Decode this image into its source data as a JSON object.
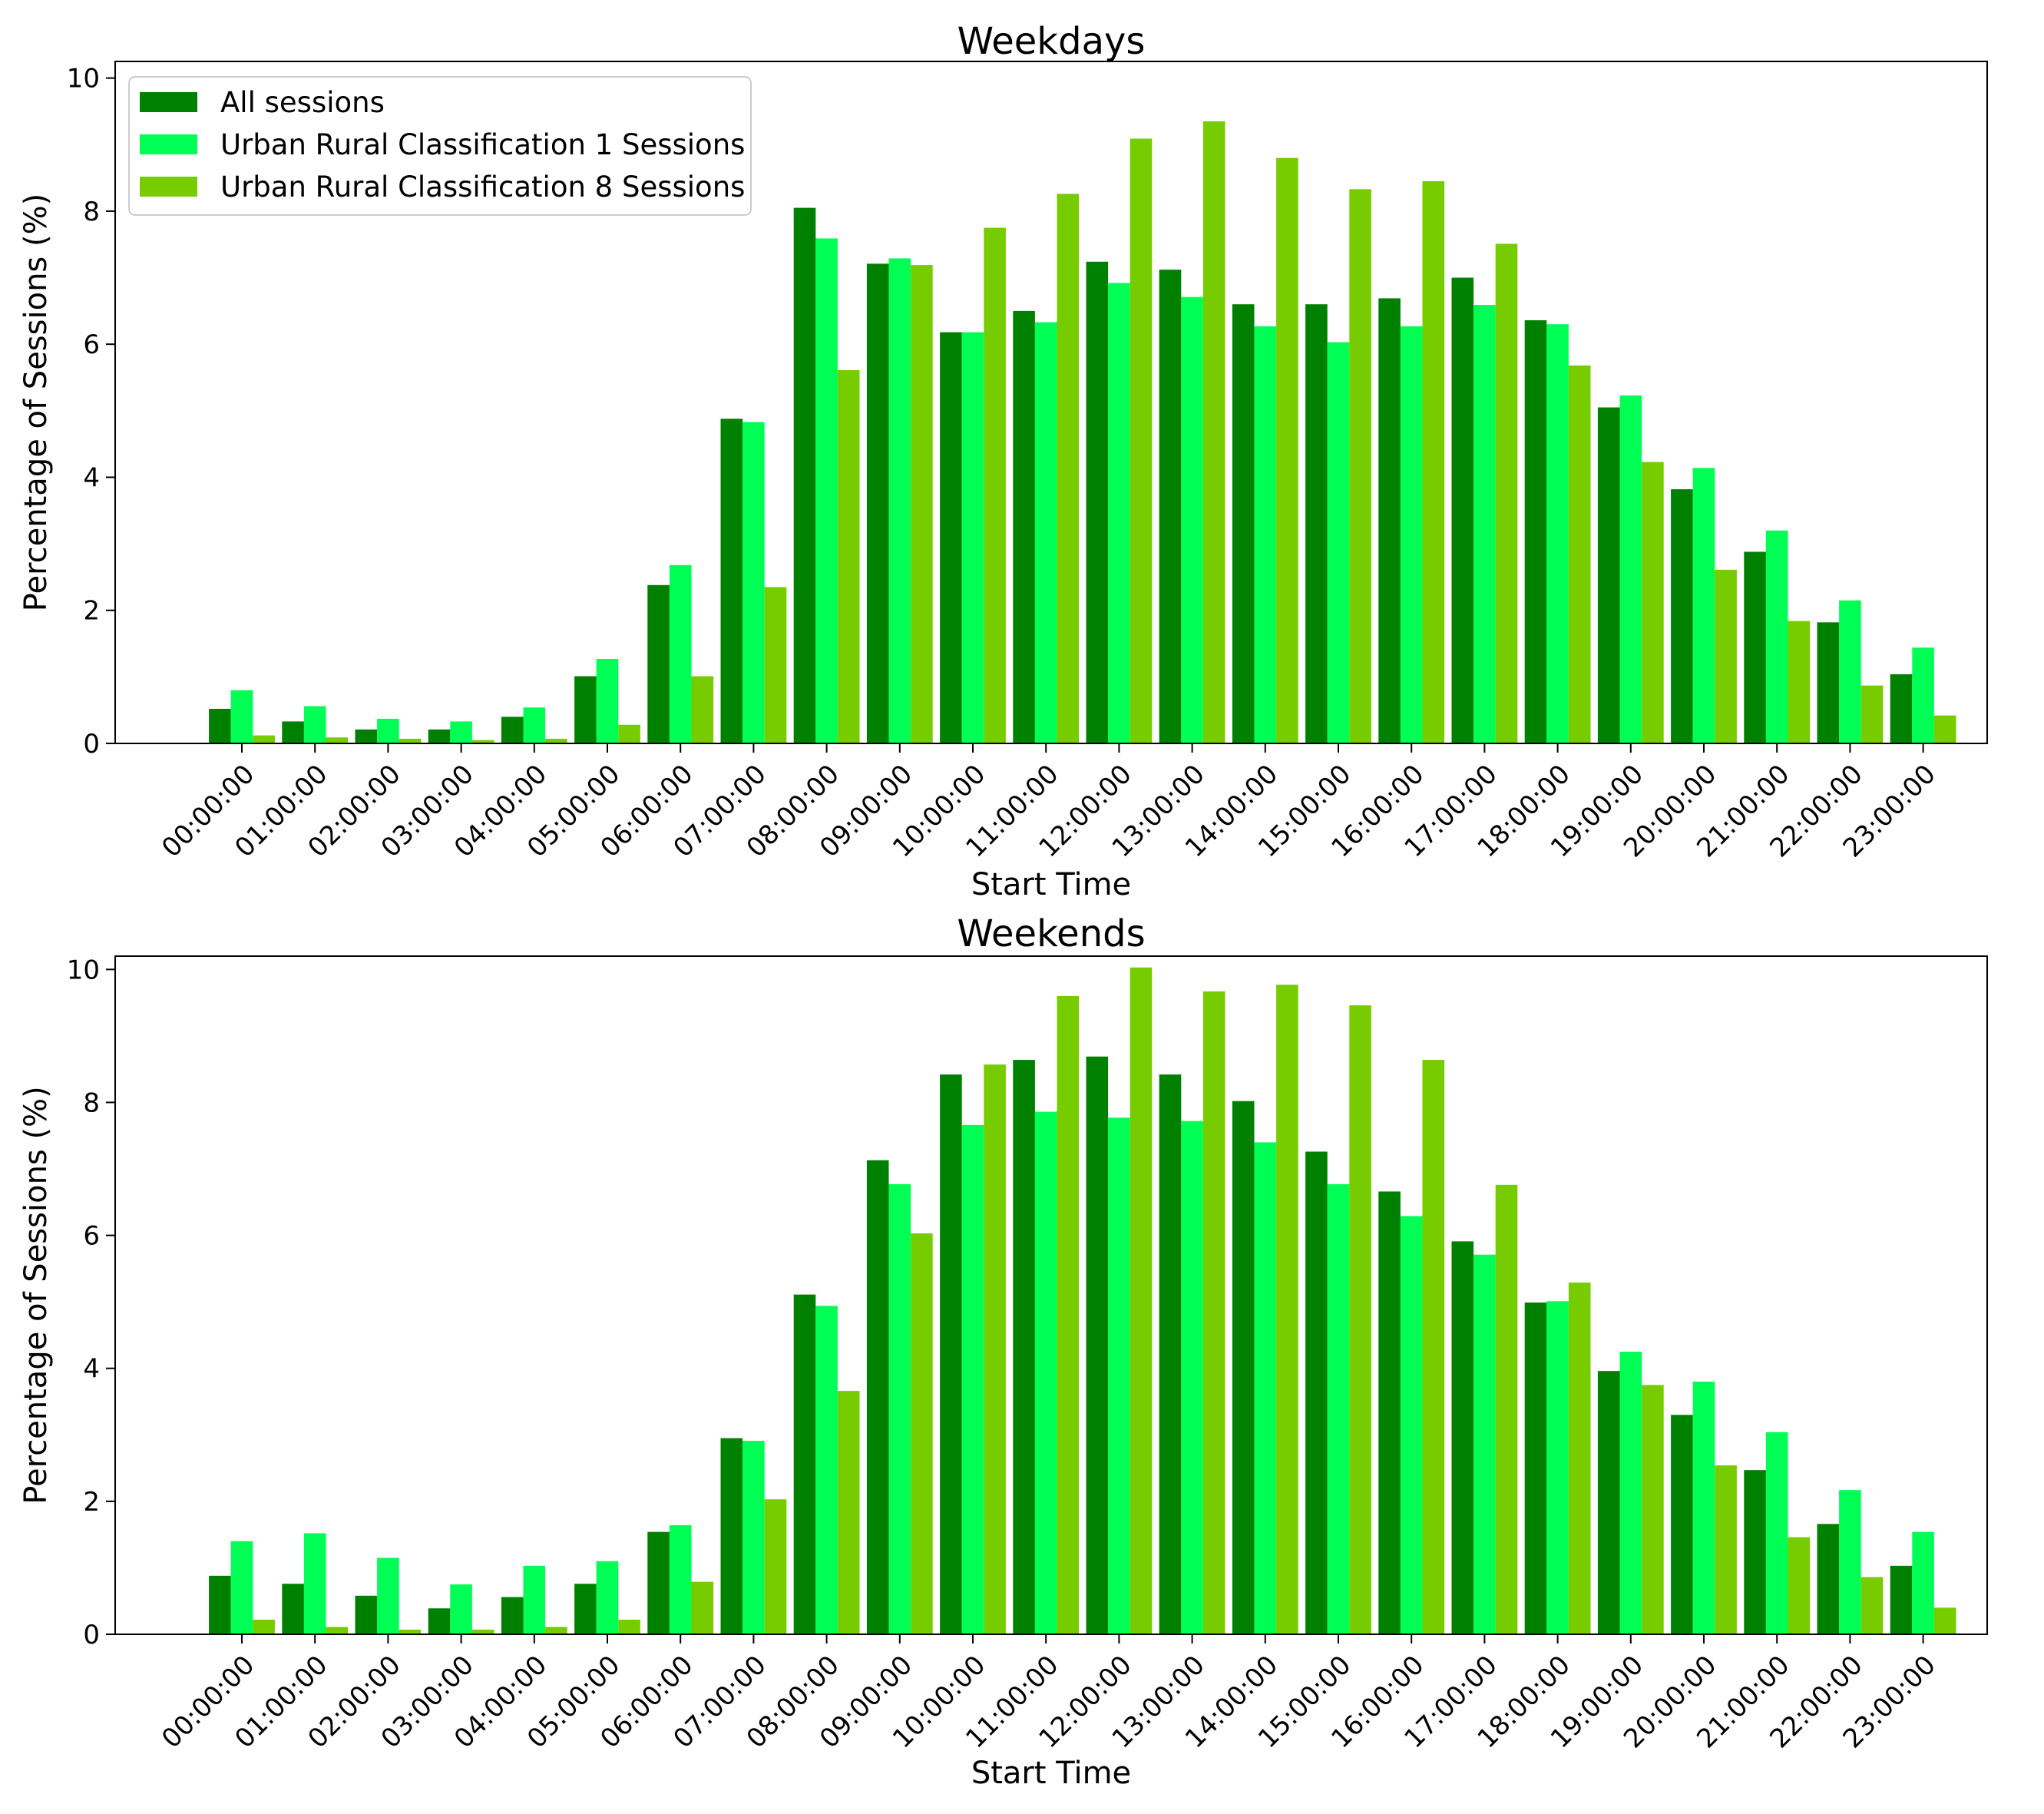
{
  "chart_data": [
    {
      "type": "bar",
      "title": "Weekdays",
      "xlabel": "Start Time",
      "ylabel": "Percentage of Sessions (%)",
      "ylim": [
        0,
        10.25
      ],
      "yticks": [
        0,
        2,
        4,
        6,
        8,
        10
      ],
      "grid": false,
      "legend": "top-left",
      "categories": [
        "00:00:00",
        "01:00:00",
        "02:00:00",
        "03:00:00",
        "04:00:00",
        "05:00:00",
        "06:00:00",
        "07:00:00",
        "08:00:00",
        "09:00:00",
        "10:00:00",
        "11:00:00",
        "12:00:00",
        "13:00:00",
        "14:00:00",
        "15:00:00",
        "16:00:00",
        "17:00:00",
        "18:00:00",
        "19:00:00",
        "20:00:00",
        "21:00:00",
        "22:00:00",
        "23:00:00"
      ],
      "series": [
        {
          "name": "All sessions",
          "color": "#008000",
          "values": [
            0.52,
            0.33,
            0.21,
            0.21,
            0.4,
            1.01,
            2.38,
            4.88,
            8.05,
            7.21,
            6.18,
            6.5,
            7.24,
            7.12,
            6.6,
            6.6,
            6.69,
            7.0,
            6.36,
            5.05,
            3.82,
            2.88,
            1.82,
            1.04
          ]
        },
        {
          "name": "Urban Rural Classification 1 Sessions",
          "color": "#00FF55",
          "values": [
            0.8,
            0.56,
            0.37,
            0.33,
            0.54,
            1.27,
            2.68,
            4.83,
            7.59,
            7.29,
            6.18,
            6.33,
            6.92,
            6.71,
            6.27,
            6.03,
            6.27,
            6.59,
            6.3,
            5.23,
            4.14,
            3.2,
            2.15,
            1.44
          ]
        },
        {
          "name": "Urban Rural Classification 8 Sessions",
          "color": "#77CC00",
          "values": [
            0.12,
            0.09,
            0.07,
            0.05,
            0.07,
            0.28,
            1.01,
            2.35,
            5.61,
            7.19,
            7.75,
            8.26,
            9.09,
            9.35,
            8.8,
            8.33,
            8.45,
            7.51,
            5.68,
            4.23,
            2.61,
            1.84,
            0.87,
            0.42
          ]
        }
      ]
    },
    {
      "type": "bar",
      "title": "Weekends",
      "xlabel": "Start Time",
      "ylabel": "Percentage of Sessions (%)",
      "ylim": [
        0,
        10.2
      ],
      "yticks": [
        0,
        2,
        4,
        6,
        8,
        10
      ],
      "grid": false,
      "legend": "none",
      "categories": [
        "00:00:00",
        "01:00:00",
        "02:00:00",
        "03:00:00",
        "04:00:00",
        "05:00:00",
        "06:00:00",
        "07:00:00",
        "08:00:00",
        "09:00:00",
        "10:00:00",
        "11:00:00",
        "12:00:00",
        "13:00:00",
        "14:00:00",
        "15:00:00",
        "16:00:00",
        "17:00:00",
        "18:00:00",
        "19:00:00",
        "20:00:00",
        "21:00:00",
        "22:00:00",
        "23:00:00"
      ],
      "series": [
        {
          "name": "All sessions",
          "color": "#008000",
          "values": [
            0.88,
            0.76,
            0.58,
            0.39,
            0.56,
            0.76,
            1.54,
            2.95,
            5.11,
            7.13,
            8.42,
            8.64,
            8.69,
            8.42,
            8.02,
            7.26,
            6.66,
            5.91,
            4.99,
            3.96,
            3.3,
            2.47,
            1.66,
            1.03
          ]
        },
        {
          "name": "Urban Rural Classification 1 Sessions",
          "color": "#00FF55",
          "values": [
            1.4,
            1.52,
            1.15,
            0.75,
            1.03,
            1.1,
            1.64,
            2.91,
            4.94,
            6.77,
            7.66,
            7.86,
            7.77,
            7.72,
            7.4,
            6.77,
            6.29,
            5.71,
            5.01,
            4.25,
            3.8,
            3.04,
            2.17,
            1.54
          ]
        },
        {
          "name": "Urban Rural Classification 8 Sessions",
          "color": "#77CC00",
          "values": [
            0.22,
            0.11,
            0.07,
            0.07,
            0.11,
            0.22,
            0.79,
            2.03,
            3.66,
            6.03,
            8.57,
            9.6,
            10.03,
            9.67,
            9.77,
            9.46,
            8.64,
            6.76,
            5.29,
            3.75,
            2.54,
            1.46,
            0.86,
            0.4
          ]
        }
      ]
    }
  ]
}
